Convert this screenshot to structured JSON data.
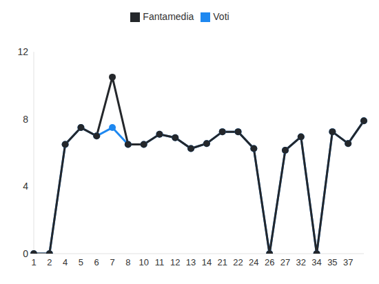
{
  "chart_data": {
    "type": "line",
    "categories": [
      "1",
      "2",
      "4",
      "5",
      "6",
      "7",
      "8",
      "10",
      "11",
      "12",
      "13",
      "14",
      "21",
      "22",
      "24",
      "26",
      "27",
      "32",
      "34",
      "35",
      "37",
      null
    ],
    "series": [
      {
        "name": "Voti",
        "color": "#1e88f0",
        "values": [
          0,
          0,
          6.5,
          7.5,
          7,
          7.5,
          6.5,
          6.5,
          7.1,
          6.9,
          6.25,
          6.55,
          7.25,
          7.25,
          6.25,
          0,
          6.15,
          6.95,
          0,
          7.25,
          6.55,
          7.9
        ]
      },
      {
        "name": "Fantamedia",
        "color": "#24272b",
        "values": [
          0,
          0,
          6.5,
          7.5,
          7,
          10.5,
          6.5,
          6.5,
          7.1,
          6.9,
          6.25,
          6.55,
          7.25,
          7.25,
          6.25,
          0,
          6.15,
          6.95,
          0,
          7.25,
          6.55,
          7.9
        ]
      }
    ],
    "ylim": [
      0,
      12
    ],
    "yticks": [
      0,
      4,
      8,
      12
    ],
    "grid": false,
    "legend": "top",
    "marker": "circle"
  }
}
